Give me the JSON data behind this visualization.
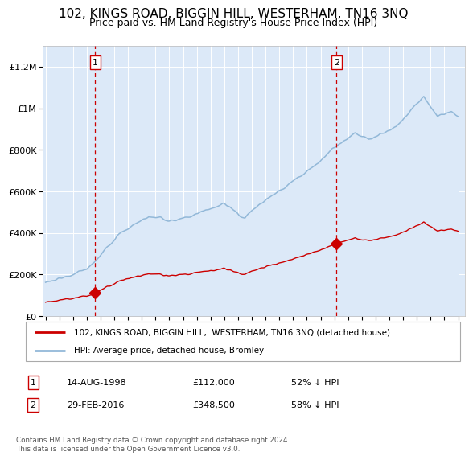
{
  "title": "102, KINGS ROAD, BIGGIN HILL, WESTERHAM, TN16 3NQ",
  "subtitle": "Price paid vs. HM Land Registry's House Price Index (HPI)",
  "legend_line1": "102, KINGS ROAD, BIGGIN HILL,  WESTERHAM, TN16 3NQ (detached house)",
  "legend_line2": "HPI: Average price, detached house, Bromley",
  "footer": "Contains HM Land Registry data © Crown copyright and database right 2024.\nThis data is licensed under the Open Government Licence v3.0.",
  "ann1_label": "1",
  "ann1_date": "14-AUG-1998",
  "ann1_price": "£112,000",
  "ann1_pct": "52% ↓ HPI",
  "ann2_label": "2",
  "ann2_date": "29-FEB-2016",
  "ann2_price": "£348,500",
  "ann2_pct": "58% ↓ HPI",
  "sale1_year": 1998.62,
  "sale1_price": 112000,
  "sale2_year": 2016.16,
  "sale2_price": 348500,
  "ylim": [
    0,
    1300000
  ],
  "xlim": [
    1994.8,
    2025.5
  ],
  "yticks": [
    0,
    200000,
    400000,
    600000,
    800000,
    1000000,
    1200000
  ],
  "ytick_labels": [
    "£0",
    "£200K",
    "£400K",
    "£600K",
    "£800K",
    "£1M",
    "£1.2M"
  ],
  "xticks": [
    1995,
    1996,
    1997,
    1998,
    1999,
    2000,
    2001,
    2002,
    2003,
    2004,
    2005,
    2006,
    2007,
    2008,
    2009,
    2010,
    2011,
    2012,
    2013,
    2014,
    2015,
    2016,
    2017,
    2018,
    2019,
    2020,
    2021,
    2022,
    2023,
    2024,
    2025
  ],
  "bg_color": "#dce9f8",
  "hpi_color": "#92b8d8",
  "price_color": "#cc0000",
  "vline_color": "#cc0000",
  "grid_color": "#ffffff",
  "title_fontsize": 11,
  "subtitle_fontsize": 9,
  "tick_fontsize": 8
}
